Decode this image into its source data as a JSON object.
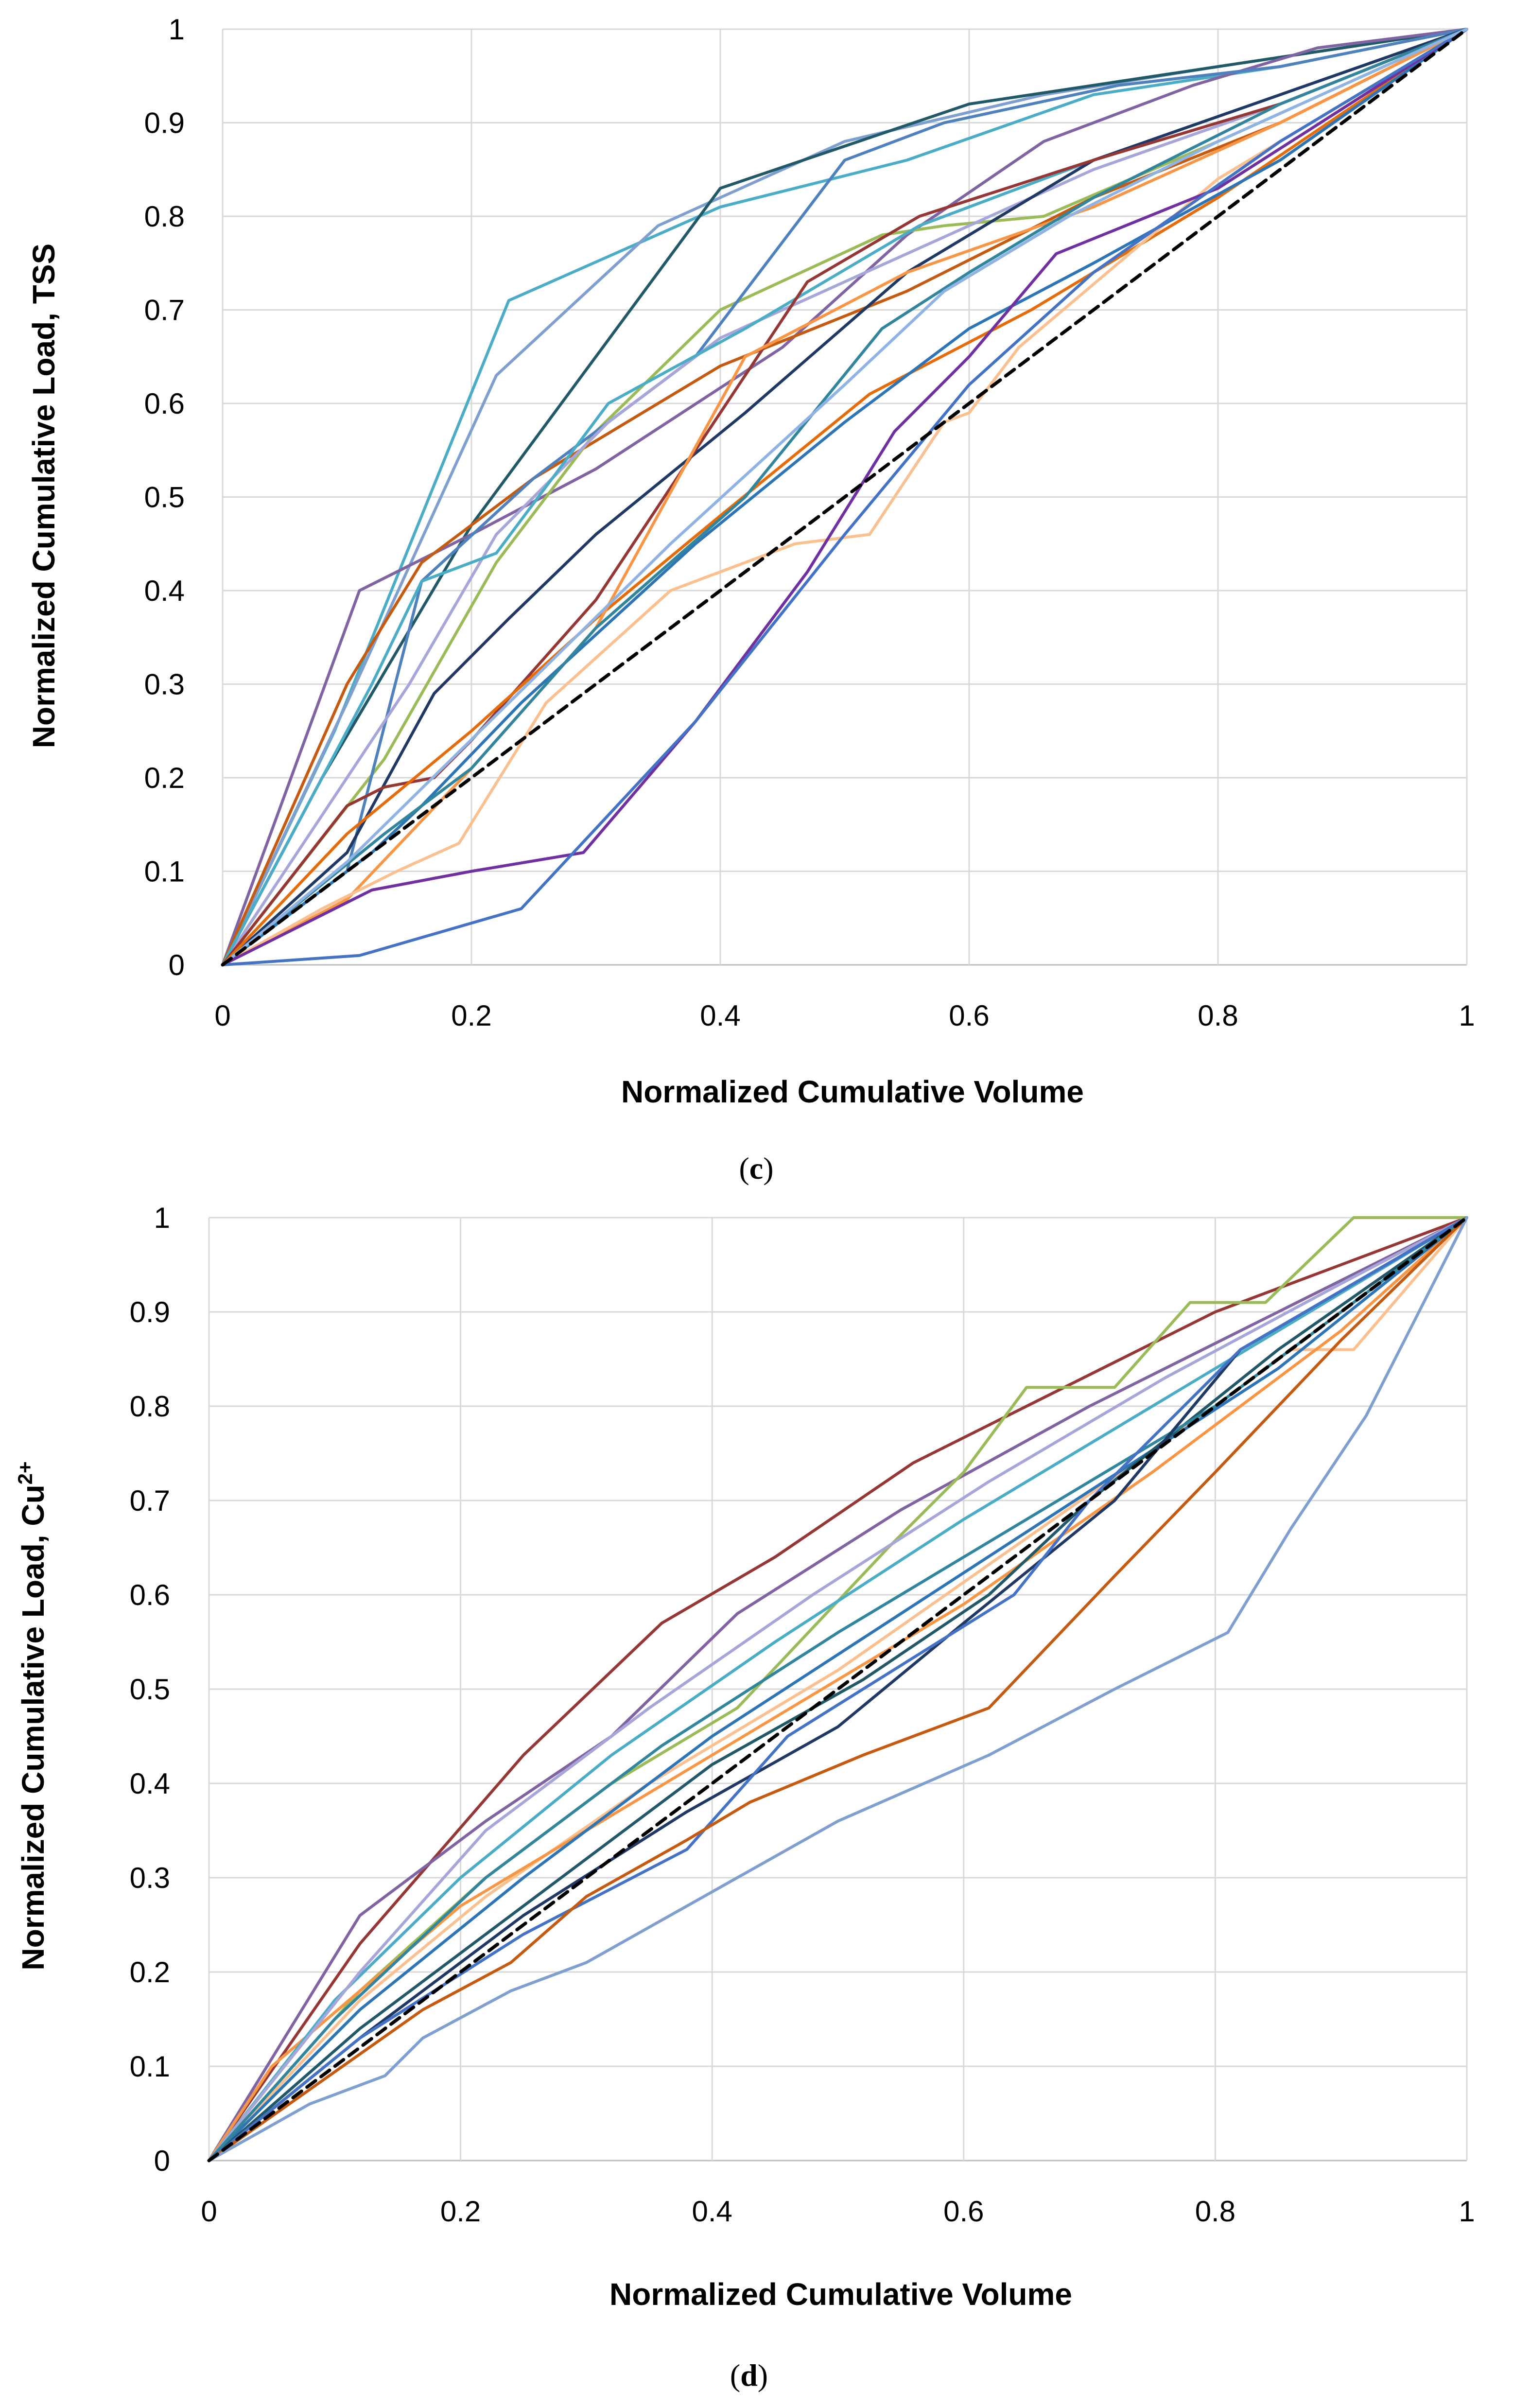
{
  "figure": {
    "caption_c": "c",
    "caption_d": "d"
  },
  "chart_data": [
    {
      "id": "c",
      "type": "line",
      "title": "",
      "xlabel": "Normalized Cumulative Volume",
      "ylabel": "Normalized Cumulative Load, TSS",
      "xlim": [
        0,
        1
      ],
      "ylim": [
        0,
        1
      ],
      "xticks": [
        "0",
        "0.2",
        "0.4",
        "0.6",
        "0.8",
        "1"
      ],
      "yticks": [
        "0",
        "0.1",
        "0.2",
        "0.3",
        "0.4",
        "0.5",
        "0.6",
        "0.7",
        "0.8",
        "0.9",
        "1"
      ],
      "grid": true,
      "series": [
        {
          "name": "c-s01",
          "color": "#4bacc6",
          "x": [
            0,
            0.09,
            0.23,
            0.4,
            0.55,
            0.7,
            0.85,
            1
          ],
          "y": [
            0,
            0.25,
            0.71,
            0.81,
            0.86,
            0.93,
            0.96,
            1
          ]
        },
        {
          "name": "c-s02",
          "color": "#7f9fcf",
          "x": [
            0,
            0.1,
            0.22,
            0.35,
            0.5,
            0.66,
            0.8,
            1
          ],
          "y": [
            0,
            0.28,
            0.63,
            0.79,
            0.88,
            0.93,
            0.96,
            1
          ]
        },
        {
          "name": "c-s03",
          "color": "#215968",
          "x": [
            0,
            0.08,
            0.2,
            0.4,
            0.6,
            0.8,
            1
          ],
          "y": [
            0,
            0.2,
            0.47,
            0.83,
            0.92,
            0.96,
            1
          ]
        },
        {
          "name": "c-s04",
          "color": "#8064a2",
          "x": [
            0,
            0.11,
            0.2,
            0.3,
            0.45,
            0.55,
            0.66,
            0.78,
            0.88,
            1
          ],
          "y": [
            0,
            0.4,
            0.46,
            0.53,
            0.66,
            0.78,
            0.88,
            0.94,
            0.98,
            1
          ]
        },
        {
          "name": "c-s05",
          "color": "#c55a11",
          "x": [
            0,
            0.1,
            0.16,
            0.25,
            0.4,
            0.55,
            0.7,
            0.85,
            1
          ],
          "y": [
            0,
            0.3,
            0.43,
            0.52,
            0.64,
            0.72,
            0.82,
            0.9,
            1
          ]
        },
        {
          "name": "c-s06",
          "color": "#9bbb59",
          "x": [
            0,
            0.13,
            0.22,
            0.3,
            0.4,
            0.53,
            0.58,
            0.66,
            0.8,
            1
          ],
          "y": [
            0,
            0.22,
            0.43,
            0.57,
            0.7,
            0.78,
            0.79,
            0.8,
            0.88,
            1
          ]
        },
        {
          "name": "c-s07",
          "color": "#4f81bd",
          "x": [
            0,
            0.1,
            0.16,
            0.25,
            0.38,
            0.5,
            0.58,
            0.72,
            0.85,
            1
          ],
          "y": [
            0,
            0.1,
            0.41,
            0.52,
            0.65,
            0.86,
            0.9,
            0.94,
            0.96,
            1
          ]
        },
        {
          "name": "c-s08",
          "color": "#a6a6d8",
          "x": [
            0,
            0.15,
            0.22,
            0.31,
            0.4,
            0.55,
            0.7,
            0.85,
            1
          ],
          "y": [
            0,
            0.3,
            0.46,
            0.58,
            0.67,
            0.76,
            0.85,
            0.92,
            1
          ]
        },
        {
          "name": "c-s09",
          "color": "#4bacc6",
          "x": [
            0,
            0.12,
            0.16,
            0.22,
            0.31,
            0.42,
            0.56,
            0.7,
            0.85,
            1
          ],
          "y": [
            0,
            0.3,
            0.41,
            0.44,
            0.6,
            0.68,
            0.79,
            0.86,
            0.93,
            1
          ]
        },
        {
          "name": "c-s10",
          "color": "#1f3864",
          "x": [
            0,
            0.1,
            0.17,
            0.23,
            0.3,
            0.42,
            0.55,
            0.7,
            0.85,
            1
          ],
          "y": [
            0,
            0.12,
            0.29,
            0.37,
            0.46,
            0.59,
            0.74,
            0.86,
            0.93,
            1
          ]
        },
        {
          "name": "c-s11",
          "color": "#953735",
          "x": [
            0,
            0.1,
            0.13,
            0.17,
            0.2,
            0.3,
            0.4,
            0.47,
            0.56,
            0.7,
            0.85,
            1
          ],
          "y": [
            0,
            0.17,
            0.19,
            0.2,
            0.24,
            0.39,
            0.59,
            0.73,
            0.8,
            0.86,
            0.92,
            1
          ]
        },
        {
          "name": "c-s12",
          "color": "#e46c0a",
          "x": [
            0,
            0.1,
            0.2,
            0.3,
            0.4,
            0.52,
            0.65,
            0.8,
            1
          ],
          "y": [
            0,
            0.14,
            0.25,
            0.37,
            0.48,
            0.61,
            0.7,
            0.82,
            1
          ]
        },
        {
          "name": "c-s13",
          "color": "#f79646",
          "x": [
            0,
            0.1,
            0.2,
            0.3,
            0.42,
            0.55,
            0.7,
            0.85,
            1
          ],
          "y": [
            0,
            0.07,
            0.21,
            0.36,
            0.65,
            0.74,
            0.81,
            0.9,
            1
          ]
        },
        {
          "name": "c-s14",
          "color": "#fac090",
          "x": [
            0,
            0.08,
            0.14,
            0.19,
            0.26,
            0.36,
            0.42,
            0.46,
            0.52,
            0.58,
            0.6,
            0.64,
            0.8,
            1
          ],
          "y": [
            0,
            0.06,
            0.1,
            0.13,
            0.28,
            0.4,
            0.43,
            0.45,
            0.46,
            0.58,
            0.59,
            0.66,
            0.84,
            1
          ]
        },
        {
          "name": "c-s15",
          "color": "#2e75b6",
          "x": [
            0,
            0.12,
            0.16,
            0.24,
            0.38,
            0.5,
            0.6,
            0.7,
            0.85,
            1
          ],
          "y": [
            0,
            0.12,
            0.17,
            0.28,
            0.45,
            0.58,
            0.68,
            0.75,
            0.86,
            1
          ]
        },
        {
          "name": "c-s16",
          "color": "#31859c",
          "x": [
            0,
            0.13,
            0.2,
            0.3,
            0.42,
            0.53,
            0.6,
            0.7,
            0.85,
            1
          ],
          "y": [
            0,
            0.14,
            0.21,
            0.36,
            0.5,
            0.68,
            0.74,
            0.82,
            0.92,
            1
          ]
        },
        {
          "name": "c-s17",
          "color": "#7030a0",
          "x": [
            0,
            0.12,
            0.2,
            0.29,
            0.38,
            0.47,
            0.54,
            0.6,
            0.67,
            0.8,
            1
          ],
          "y": [
            0,
            0.08,
            0.1,
            0.12,
            0.26,
            0.42,
            0.57,
            0.65,
            0.76,
            0.83,
            1
          ]
        },
        {
          "name": "c-s18",
          "color": "#4472c4",
          "x": [
            0,
            0.11,
            0.24,
            0.38,
            0.5,
            0.6,
            0.7,
            0.85,
            1
          ],
          "y": [
            0,
            0.01,
            0.06,
            0.26,
            0.46,
            0.62,
            0.74,
            0.88,
            1
          ]
        },
        {
          "name": "c-s19",
          "color": "#8fb4e3",
          "x": [
            0,
            0.1,
            0.23,
            0.36,
            0.5,
            0.58,
            0.68,
            0.8,
            1
          ],
          "y": [
            0,
            0.11,
            0.28,
            0.45,
            0.62,
            0.72,
            0.8,
            0.88,
            1
          ]
        },
        {
          "name": "c-s20",
          "color": "#000000",
          "dashed": true,
          "x": [
            0,
            1
          ],
          "y": [
            0,
            1
          ]
        }
      ]
    },
    {
      "id": "d",
      "type": "line",
      "title": "",
      "xlabel": "Normalized Cumulative Volume",
      "ylabel_main": "Normalized Cumulative Load, Cu",
      "ylabel_sup": "2+",
      "xlim": [
        0,
        1
      ],
      "ylim": [
        0,
        1
      ],
      "xticks": [
        "0",
        "0.2",
        "0.4",
        "0.6",
        "0.8",
        "1"
      ],
      "yticks": [
        "0",
        "0.1",
        "0.2",
        "0.3",
        "0.4",
        "0.5",
        "0.6",
        "0.7",
        "0.8",
        "0.9",
        "1"
      ],
      "grid": true,
      "series": [
        {
          "name": "d-s01",
          "color": "#953735",
          "x": [
            0,
            0.12,
            0.25,
            0.36,
            0.45,
            0.56,
            0.68,
            0.8,
            0.9,
            1
          ],
          "y": [
            0,
            0.23,
            0.43,
            0.57,
            0.64,
            0.74,
            0.82,
            0.9,
            0.95,
            1
          ]
        },
        {
          "name": "d-s02",
          "color": "#8064a2",
          "x": [
            0,
            0.12,
            0.22,
            0.32,
            0.42,
            0.55,
            0.7,
            0.85,
            1
          ],
          "y": [
            0,
            0.26,
            0.36,
            0.45,
            0.58,
            0.69,
            0.8,
            0.9,
            1
          ]
        },
        {
          "name": "d-s03",
          "color": "#9bbb59",
          "x": [
            0,
            0.12,
            0.22,
            0.32,
            0.42,
            0.54,
            0.6,
            0.65,
            0.72,
            0.78,
            0.84,
            0.91,
            1
          ],
          "y": [
            0,
            0.18,
            0.3,
            0.4,
            0.48,
            0.65,
            0.73,
            0.82,
            0.82,
            0.91,
            0.91,
            1,
            1
          ]
        },
        {
          "name": "d-s04",
          "color": "#fac090",
          "x": [
            0,
            0.12,
            0.22,
            0.35,
            0.5,
            0.65,
            0.8,
            0.86,
            0.91,
            1
          ],
          "y": [
            0,
            0.17,
            0.28,
            0.4,
            0.52,
            0.66,
            0.8,
            0.86,
            0.86,
            1
          ]
        },
        {
          "name": "d-s05",
          "color": "#f79646",
          "x": [
            0,
            0.05,
            0.12,
            0.2,
            0.3,
            0.45,
            0.6,
            0.75,
            0.9,
            1
          ],
          "y": [
            0,
            0.1,
            0.18,
            0.27,
            0.35,
            0.47,
            0.59,
            0.73,
            0.88,
            1
          ]
        },
        {
          "name": "d-s06",
          "color": "#4bacc6",
          "x": [
            0,
            0.1,
            0.2,
            0.32,
            0.45,
            0.6,
            0.75,
            0.9,
            1
          ],
          "y": [
            0,
            0.17,
            0.3,
            0.43,
            0.55,
            0.68,
            0.8,
            0.92,
            1
          ]
        },
        {
          "name": "d-s07",
          "color": "#a6a6d8",
          "x": [
            0,
            0.12,
            0.22,
            0.35,
            0.48,
            0.62,
            0.76,
            0.9,
            1
          ],
          "y": [
            0,
            0.2,
            0.35,
            0.48,
            0.6,
            0.72,
            0.83,
            0.93,
            1
          ]
        },
        {
          "name": "d-s08",
          "color": "#2e75b6",
          "x": [
            0,
            0.12,
            0.25,
            0.4,
            0.55,
            0.7,
            0.85,
            1
          ],
          "y": [
            0,
            0.16,
            0.3,
            0.45,
            0.58,
            0.71,
            0.84,
            1
          ]
        },
        {
          "name": "d-s09",
          "color": "#215968",
          "x": [
            0,
            0.12,
            0.25,
            0.4,
            0.52,
            0.62,
            0.7,
            0.85,
            1
          ],
          "y": [
            0,
            0.14,
            0.27,
            0.42,
            0.51,
            0.6,
            0.7,
            0.86,
            1
          ]
        },
        {
          "name": "d-s10",
          "color": "#31859c",
          "x": [
            0,
            0.1,
            0.22,
            0.36,
            0.5,
            0.65,
            0.8,
            1
          ],
          "y": [
            0,
            0.15,
            0.3,
            0.44,
            0.56,
            0.68,
            0.8,
            1
          ]
        },
        {
          "name": "d-s11",
          "color": "#1f3864",
          "x": [
            0,
            0.12,
            0.25,
            0.38,
            0.5,
            0.6,
            0.72,
            0.82,
            1
          ],
          "y": [
            0,
            0.13,
            0.26,
            0.37,
            0.46,
            0.57,
            0.7,
            0.86,
            1
          ]
        },
        {
          "name": "d-s12",
          "color": "#4472c4",
          "x": [
            0,
            0.12,
            0.25,
            0.38,
            0.46,
            0.58,
            0.64,
            0.7,
            0.82,
            1
          ],
          "y": [
            0,
            0.13,
            0.24,
            0.33,
            0.45,
            0.55,
            0.6,
            0.7,
            0.86,
            1
          ]
        },
        {
          "name": "d-s13",
          "color": "#c55a11",
          "x": [
            0,
            0.17,
            0.24,
            0.3,
            0.38,
            0.43,
            0.52,
            0.62,
            0.72,
            0.8,
            0.9,
            1
          ],
          "y": [
            0,
            0.16,
            0.21,
            0.28,
            0.34,
            0.38,
            0.43,
            0.48,
            0.62,
            0.73,
            0.87,
            1
          ]
        },
        {
          "name": "d-s14",
          "color": "#7f9fcf",
          "x": [
            0,
            0.08,
            0.14,
            0.17,
            0.24,
            0.3,
            0.38,
            0.5,
            0.62,
            0.72,
            0.81,
            0.86,
            0.92,
            1
          ],
          "y": [
            0,
            0.06,
            0.09,
            0.13,
            0.18,
            0.21,
            0.27,
            0.36,
            0.43,
            0.5,
            0.56,
            0.67,
            0.79,
            1
          ]
        },
        {
          "name": "d-s15",
          "color": "#000000",
          "dashed": true,
          "x": [
            0,
            1
          ],
          "y": [
            0,
            1
          ]
        }
      ]
    }
  ]
}
